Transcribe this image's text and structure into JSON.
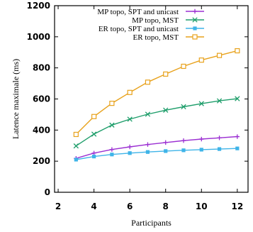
{
  "chart_data": {
    "type": "line",
    "title": "",
    "xlabel": "Participants",
    "ylabel": "Latence maximale (ms)",
    "xlim": [
      1.8,
      12.6
    ],
    "ylim": [
      0,
      1200
    ],
    "xticks": [
      2,
      4,
      6,
      8,
      10,
      12
    ],
    "yticks": [
      0,
      200,
      400,
      600,
      800,
      1000,
      1200
    ],
    "grid": false,
    "legend_position": "top-right",
    "x": [
      3,
      4,
      5,
      6,
      7,
      8,
      9,
      10,
      11,
      12
    ],
    "series": [
      {
        "name": "MP topo, SPT and unicast",
        "color": "#9b2fd2",
        "marker": "plus",
        "values": [
          218,
          252,
          275,
          292,
          307,
          320,
          332,
          342,
          350,
          358
        ]
      },
      {
        "name": "MP topo, MST",
        "color": "#1f9e6b",
        "marker": "x",
        "values": [
          298,
          374,
          432,
          470,
          502,
          528,
          550,
          570,
          588,
          602
        ]
      },
      {
        "name": "ER topo, SPT and unicast",
        "color": "#3fb4e8",
        "marker": "square-filled",
        "values": [
          210,
          230,
          243,
          252,
          259,
          265,
          270,
          274,
          278,
          282
        ]
      },
      {
        "name": "ER topo, MST",
        "color": "#e8a21c",
        "marker": "square-open",
        "values": [
          372,
          487,
          572,
          642,
          708,
          760,
          810,
          850,
          880,
          910
        ]
      }
    ]
  }
}
